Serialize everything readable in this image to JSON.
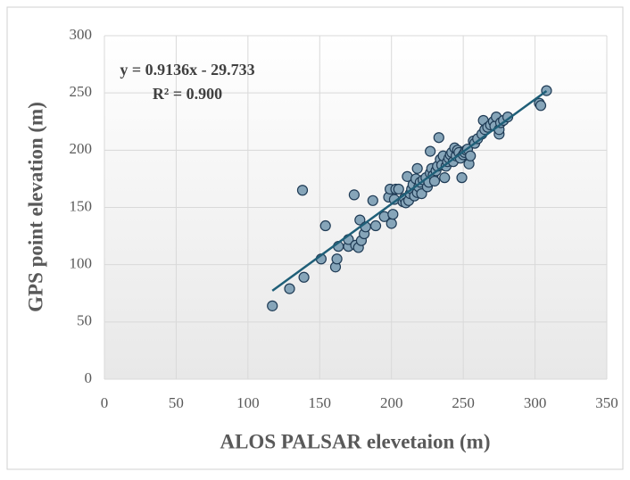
{
  "chart_data": {
    "type": "scatter",
    "x_label": "ALOS PALSAR elevetaion (m)",
    "y_label": "GPS point elevation (m)",
    "annotations": [
      "y = 0.9136x - 29.733",
      "R² = 0.900"
    ],
    "xlim": [
      0,
      350
    ],
    "xticks": [
      0,
      50,
      100,
      150,
      200,
      250,
      300,
      350
    ],
    "ylim": [
      0,
      300
    ],
    "yticks": [
      0,
      50,
      100,
      150,
      200,
      250,
      300
    ],
    "grid": true,
    "color": "#86a5b9",
    "edge_color": "#1f3b55",
    "trendline": {
      "color": "#1f5f78",
      "x": [
        117,
        308
      ],
      "y": [
        77.2,
        251.7
      ]
    },
    "x": [
      117,
      129,
      139,
      138,
      151,
      154,
      161,
      162,
      163,
      170,
      170,
      174,
      175,
      177,
      178,
      179,
      181,
      182,
      187,
      189,
      195,
      198,
      199,
      200,
      201,
      202,
      203,
      205,
      208,
      209,
      210,
      211,
      212,
      213,
      214,
      215,
      216,
      217,
      218,
      218,
      219,
      220,
      221,
      222,
      224,
      225,
      226,
      227,
      227,
      228,
      229,
      230,
      231,
      232,
      233,
      234,
      235,
      236,
      237,
      238,
      239,
      240,
      241,
      242,
      243,
      244,
      245,
      246,
      247,
      248,
      249,
      250,
      251,
      252,
      253,
      254,
      255,
      257,
      258,
      260,
      263,
      264,
      265,
      267,
      269,
      271,
      272,
      273,
      275,
      275,
      276,
      278,
      281,
      303,
      304,
      308
    ],
    "y": [
      64,
      79,
      89,
      165,
      105,
      134,
      98,
      105,
      116,
      116,
      122,
      161,
      117,
      115,
      139,
      121,
      127,
      133,
      156,
      134,
      142,
      159,
      166,
      136,
      144,
      157,
      166,
      166,
      155,
      158,
      154,
      177,
      156,
      162,
      166,
      170,
      160,
      175,
      163,
      184,
      168,
      172,
      162,
      174,
      176,
      168,
      172,
      180,
      199,
      184,
      178,
      173,
      182,
      186,
      211,
      192,
      187,
      195,
      176,
      186,
      190,
      193,
      196,
      198,
      190,
      202,
      195,
      200,
      198,
      193,
      176,
      196,
      198,
      200,
      201,
      188,
      195,
      208,
      206,
      210,
      214,
      226,
      218,
      220,
      222,
      225,
      221,
      229,
      214,
      218,
      224,
      226,
      229,
      241,
      239,
      252
    ]
  }
}
